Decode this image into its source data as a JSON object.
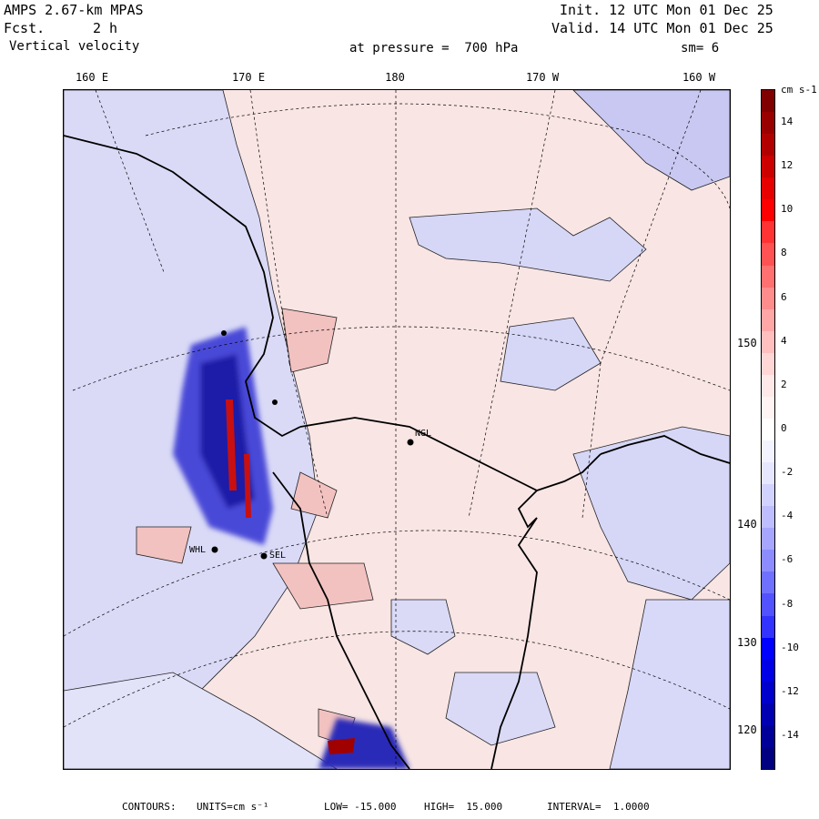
{
  "header": {
    "model": "AMPS 2.67-km MPAS",
    "fcst_label": "Fcst.",
    "fcst_value": "2 h",
    "field": "Vertical velocity",
    "init": "Init. 12 UTC Mon 01 Dec 25",
    "valid": "Valid. 14 UTC Mon 01 Dec 25",
    "level": "at pressure =  700 hPa",
    "smoothing": "sm= 6"
  },
  "axes": {
    "longitudes": [
      "160 E",
      "170 E",
      "180",
      "170 W",
      "160 W"
    ],
    "latitudes": [
      "150 W",
      "140 W",
      "130 W",
      "120 W"
    ]
  },
  "colorbar": {
    "units": "cm s-1",
    "tick_labels": [
      "14",
      "12",
      "10",
      "8",
      "6",
      "4",
      "2",
      "0",
      "-2",
      "-4",
      "-6",
      "-8",
      "-10",
      "-12",
      "-14"
    ],
    "levels": [
      15,
      14,
      13,
      12,
      11,
      10,
      9,
      8,
      7,
      6,
      5,
      4,
      3,
      2,
      1,
      0,
      -1,
      -2,
      -3,
      -4,
      -5,
      -6,
      -7,
      -8,
      -9,
      -10,
      -11,
      -12,
      -13,
      -14,
      -15
    ],
    "colors": [
      "#800000",
      "#990000",
      "#b20000",
      "#cc0000",
      "#e60000",
      "#ff0000",
      "#ff3333",
      "#ff5252",
      "#ff7070",
      "#ff8c8c",
      "#ffa6a6",
      "#ffbfbf",
      "#ffd6d6",
      "#ffe8e8",
      "#fff3f3",
      "#ffffff",
      "#f3f3ff",
      "#e6e6ff",
      "#d2d2ff",
      "#bdbdff",
      "#a6a6ff",
      "#8c8cff",
      "#7070ff",
      "#5252ff",
      "#3333ff",
      "#0000ff",
      "#0000e6",
      "#0000cc",
      "#0000b2",
      "#000099",
      "#000080"
    ]
  },
  "stations": [
    "NGL",
    "SEL",
    "WHL"
  ],
  "footer": {
    "contours_label": "CONTOURS:",
    "units": "UNITS=cm s⁻¹",
    "low": "LOW= -15.000",
    "high": "HIGH=  15.000",
    "interval": "INTERVAL=  1.0000"
  },
  "colors": {
    "positive_light": "#f5d5d3",
    "negative_light": "#dcdcf8",
    "negative_medium": "#b9b9f0",
    "coast": "#000000"
  }
}
